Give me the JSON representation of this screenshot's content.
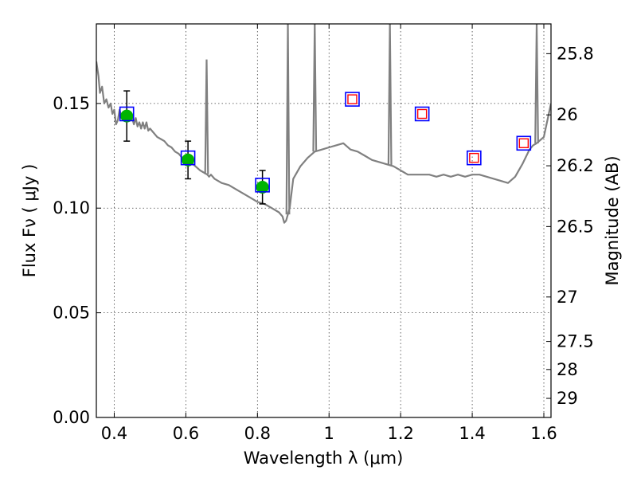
{
  "chart_data": {
    "type": "scatter",
    "xlabel": "Wavelength  λ (μm)",
    "ylabel": "Flux  Fν  ( μJy )",
    "y2label": "Magnitude (AB)",
    "xlim": [
      0.35,
      1.62
    ],
    "ylim": [
      0.0,
      0.188
    ],
    "x_ticks": [
      {
        "value": 0.4,
        "label": "0.4"
      },
      {
        "value": 0.6,
        "label": "0.6"
      },
      {
        "value": 0.8,
        "label": "0.8"
      },
      {
        "value": 1.0,
        "label": "1"
      },
      {
        "value": 1.2,
        "label": "1.2"
      },
      {
        "value": 1.4,
        "label": "1.4"
      },
      {
        "value": 1.6,
        "label": "1.6"
      }
    ],
    "y_ticks": [
      {
        "value": 0.0,
        "label": "0.00"
      },
      {
        "value": 0.05,
        "label": "0.05"
      },
      {
        "value": 0.1,
        "label": "0.10"
      },
      {
        "value": 0.15,
        "label": "0.15"
      }
    ],
    "y2_ticks": [
      {
        "value": 25.8,
        "label": "25.8"
      },
      {
        "value": 26.0,
        "label": "26"
      },
      {
        "value": 26.2,
        "label": "26.2"
      },
      {
        "value": 26.5,
        "label": "26.5"
      },
      {
        "value": 27.0,
        "label": "27"
      },
      {
        "value": 27.5,
        "label": "27.5"
      },
      {
        "value": 28.0,
        "label": "28"
      },
      {
        "value": 29.0,
        "label": "29"
      }
    ],
    "y2_scale": "AB magnitude",
    "grid": true,
    "series": [
      {
        "kind": "line",
        "color": "#808080",
        "points": [
          [
            0.35,
            0.17
          ],
          [
            0.356,
            0.163
          ],
          [
            0.36,
            0.155
          ],
          [
            0.366,
            0.158
          ],
          [
            0.372,
            0.15
          ],
          [
            0.378,
            0.152
          ],
          [
            0.384,
            0.148
          ],
          [
            0.39,
            0.15
          ],
          [
            0.395,
            0.145
          ],
          [
            0.4,
            0.147
          ],
          [
            0.405,
            0.14
          ],
          [
            0.41,
            0.142
          ],
          [
            0.415,
            0.147
          ],
          [
            0.42,
            0.143
          ],
          [
            0.425,
            0.145
          ],
          [
            0.43,
            0.146
          ],
          [
            0.435,
            0.145
          ],
          [
            0.44,
            0.144
          ],
          [
            0.445,
            0.142
          ],
          [
            0.45,
            0.143
          ],
          [
            0.455,
            0.14
          ],
          [
            0.46,
            0.143
          ],
          [
            0.465,
            0.139
          ],
          [
            0.47,
            0.141
          ],
          [
            0.475,
            0.138
          ],
          [
            0.48,
            0.141
          ],
          [
            0.485,
            0.138
          ],
          [
            0.49,
            0.141
          ],
          [
            0.495,
            0.137
          ],
          [
            0.5,
            0.138
          ],
          [
            0.51,
            0.136
          ],
          [
            0.52,
            0.134
          ],
          [
            0.53,
            0.133
          ],
          [
            0.54,
            0.132
          ],
          [
            0.55,
            0.13
          ],
          [
            0.56,
            0.129
          ],
          [
            0.57,
            0.127
          ],
          [
            0.58,
            0.126
          ],
          [
            0.59,
            0.124
          ],
          [
            0.6,
            0.123
          ],
          [
            0.62,
            0.121
          ],
          [
            0.64,
            0.118
          ],
          [
            0.65,
            0.117
          ],
          [
            0.66,
            0.116
          ],
          [
            0.665,
            0.115
          ],
          [
            0.67,
            0.116
          ],
          [
            0.68,
            0.114
          ],
          [
            0.7,
            0.112
          ],
          [
            0.72,
            0.111
          ],
          [
            0.74,
            0.109
          ],
          [
            0.76,
            0.107
          ],
          [
            0.78,
            0.105
          ],
          [
            0.8,
            0.103
          ],
          [
            0.82,
            0.102
          ],
          [
            0.84,
            0.1
          ],
          [
            0.86,
            0.098
          ],
          [
            0.87,
            0.096
          ],
          [
            0.875,
            0.093
          ],
          [
            0.88,
            0.094
          ],
          [
            0.89,
            0.1
          ],
          [
            0.9,
            0.114
          ],
          [
            0.92,
            0.12
          ],
          [
            0.94,
            0.124
          ],
          [
            0.96,
            0.127
          ],
          [
            0.98,
            0.128
          ],
          [
            1.0,
            0.129
          ],
          [
            1.02,
            0.13
          ],
          [
            1.04,
            0.131
          ],
          [
            1.06,
            0.128
          ],
          [
            1.08,
            0.127
          ],
          [
            1.1,
            0.125
          ],
          [
            1.12,
            0.123
          ],
          [
            1.14,
            0.122
          ],
          [
            1.16,
            0.121
          ],
          [
            1.18,
            0.12
          ],
          [
            1.2,
            0.118
          ],
          [
            1.22,
            0.116
          ],
          [
            1.24,
            0.116
          ],
          [
            1.26,
            0.116
          ],
          [
            1.28,
            0.116
          ],
          [
            1.3,
            0.115
          ],
          [
            1.32,
            0.116
          ],
          [
            1.34,
            0.115
          ],
          [
            1.36,
            0.116
          ],
          [
            1.38,
            0.115
          ],
          [
            1.4,
            0.116
          ],
          [
            1.42,
            0.116
          ],
          [
            1.44,
            0.115
          ],
          [
            1.46,
            0.114
          ],
          [
            1.48,
            0.113
          ],
          [
            1.5,
            0.112
          ],
          [
            1.52,
            0.115
          ],
          [
            1.54,
            0.121
          ],
          [
            1.56,
            0.128
          ],
          [
            1.57,
            0.13
          ],
          [
            1.58,
            0.131
          ],
          [
            1.6,
            0.134
          ],
          [
            1.62,
            0.15
          ]
        ],
        "spikes": [
          {
            "x": 0.658,
            "peak": 0.171
          },
          {
            "x": 0.885,
            "peak": 0.188
          },
          {
            "x": 0.96,
            "peak": 0.188
          },
          {
            "x": 1.17,
            "peak": 0.188
          },
          {
            "x": 1.58,
            "peak": 0.188
          }
        ]
      },
      {
        "kind": "markers",
        "marker": "circle",
        "color": "#00b400",
        "points": [
          {
            "x": 0.435,
            "y": 0.144,
            "err": 0.012
          },
          {
            "x": 0.606,
            "y": 0.123,
            "err": 0.009
          },
          {
            "x": 0.814,
            "y": 0.11,
            "err": 0.008
          }
        ]
      },
      {
        "kind": "markers",
        "marker": "square",
        "edge": "#0000ff",
        "points": [
          {
            "x": 0.435,
            "y": 0.145
          },
          {
            "x": 0.606,
            "y": 0.124
          },
          {
            "x": 0.814,
            "y": 0.111
          }
        ]
      },
      {
        "kind": "markers",
        "marker": "square-double",
        "edge": "#0000ff",
        "inner": "#ff0000",
        "points": [
          {
            "x": 1.065,
            "y": 0.152
          },
          {
            "x": 1.26,
            "y": 0.145
          },
          {
            "x": 1.405,
            "y": 0.124
          },
          {
            "x": 1.544,
            "y": 0.131
          }
        ]
      }
    ]
  }
}
